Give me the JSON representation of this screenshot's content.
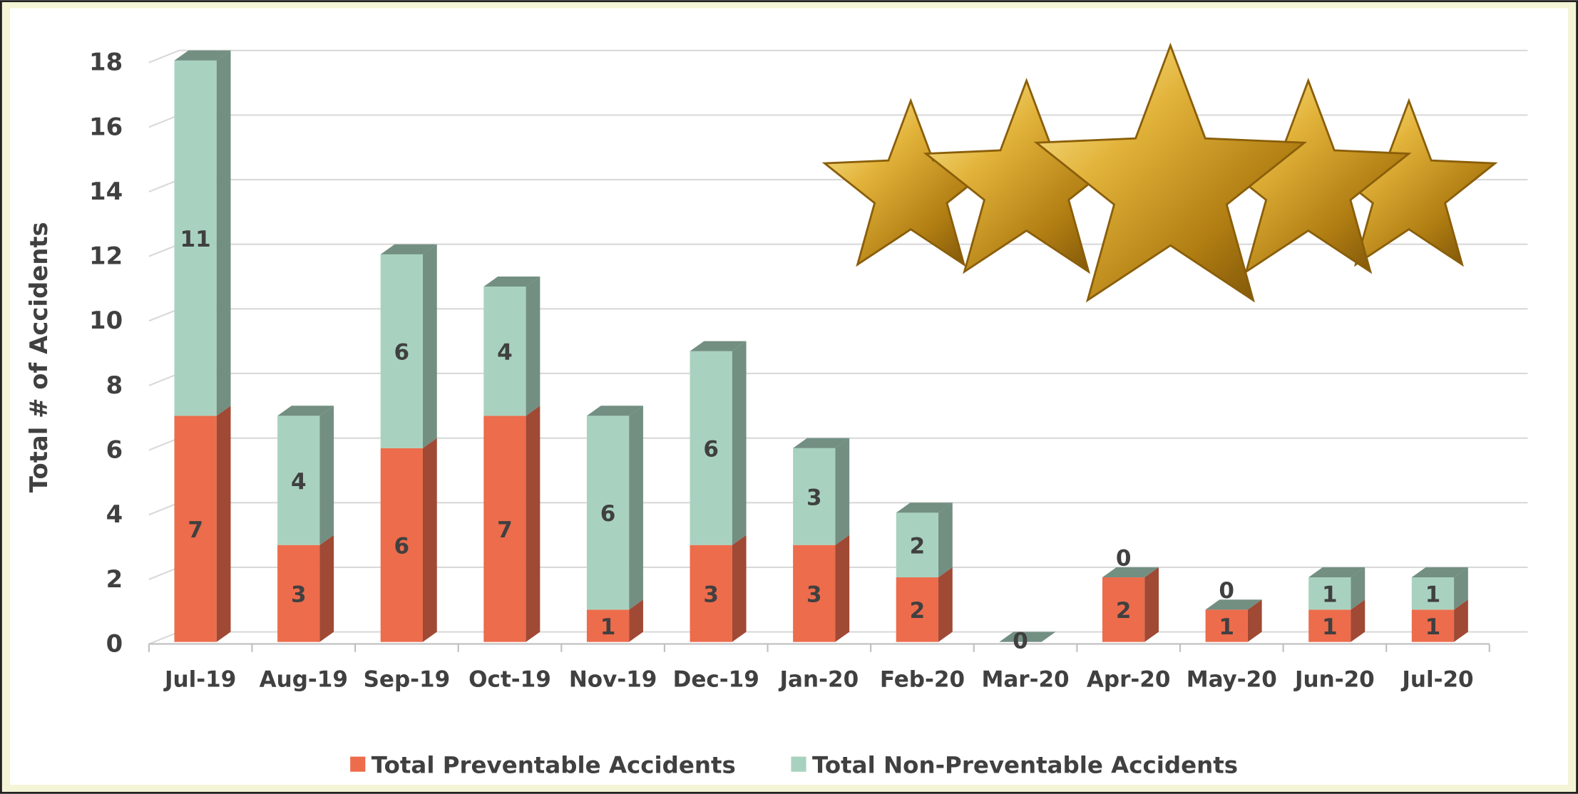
{
  "chart_data": {
    "type": "bar3d-stacked",
    "y_label": "Total # of Accidents",
    "categories": [
      "Jul-19",
      "Aug-19",
      "Sep-19",
      "Oct-19",
      "Nov-19",
      "Dec-19",
      "Jan-20",
      "Feb-20",
      "Mar-20",
      "Apr-20",
      "May-20",
      "Jun-20",
      "Jul-20"
    ],
    "series": [
      {
        "name": "Total Preventable Accidents",
        "color": "#ec6c4c",
        "values": [
          7,
          3,
          6,
          7,
          1,
          3,
          3,
          2,
          0,
          2,
          1,
          1,
          1
        ]
      },
      {
        "name": "Total Non-Preventable Accidents",
        "color": "#a8d2bf",
        "values": [
          11,
          4,
          6,
          4,
          6,
          6,
          3,
          2,
          0,
          0,
          0,
          1,
          1
        ]
      }
    ],
    "ylim": [
      0,
      18
    ],
    "yticks": [
      0,
      2,
      4,
      6,
      8,
      10,
      12,
      14,
      16,
      18
    ],
    "grid": true,
    "legend": "bottom"
  }
}
